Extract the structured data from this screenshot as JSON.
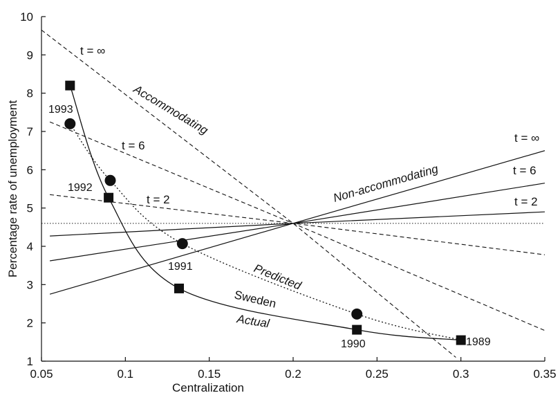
{
  "chart_data": {
    "type": "line",
    "xlabel": "Centralization",
    "ylabel": "Percentage rate of unemployment",
    "xlim": [
      0.05,
      0.35
    ],
    "ylim": [
      1,
      10
    ],
    "x_ticks": [
      "0.05",
      "0.1",
      "0.15",
      "0.2",
      "0.25",
      "0.3",
      "0.35"
    ],
    "y_ticks": [
      "1",
      "2",
      "3",
      "4",
      "5",
      "6",
      "7",
      "8",
      "9",
      "10"
    ],
    "grid": false,
    "reference_line": {
      "y": 4.6,
      "style": "dotted"
    },
    "series": [
      {
        "group": "Accommodating",
        "name": "t = ∞",
        "style": "dashed",
        "points": [
          [
            0.05,
            9.65
          ],
          [
            0.2,
            4.6
          ],
          [
            0.297,
            1.1
          ]
        ]
      },
      {
        "group": "Accommodating",
        "name": "t = 6",
        "style": "dashed",
        "points": [
          [
            0.055,
            7.25
          ],
          [
            0.2,
            4.6
          ],
          [
            0.35,
            1.8
          ]
        ]
      },
      {
        "group": "Accommodating",
        "name": "t = 2",
        "style": "dashed",
        "points": [
          [
            0.055,
            5.35
          ],
          [
            0.2,
            4.6
          ],
          [
            0.35,
            3.78
          ]
        ]
      },
      {
        "group": "Non-accommodating",
        "name": "t = ∞",
        "style": "solid",
        "points": [
          [
            0.055,
            2.75
          ],
          [
            0.2,
            4.6
          ],
          [
            0.35,
            6.5
          ]
        ]
      },
      {
        "group": "Non-accommodating",
        "name": "t = 6",
        "style": "solid",
        "points": [
          [
            0.055,
            3.62
          ],
          [
            0.2,
            4.6
          ],
          [
            0.35,
            5.65
          ]
        ]
      },
      {
        "group": "Non-accommodating",
        "name": "t = 2",
        "style": "solid",
        "points": [
          [
            0.055,
            4.27
          ],
          [
            0.2,
            4.6
          ],
          [
            0.35,
            4.9
          ]
        ]
      },
      {
        "group": "Sweden",
        "name": "Actual",
        "style": "solid",
        "marker": "square",
        "points": [
          [
            0.067,
            8.2
          ],
          [
            0.09,
            5.27
          ],
          [
            0.132,
            2.9
          ],
          [
            0.238,
            1.82
          ],
          [
            0.3,
            1.55
          ]
        ]
      },
      {
        "group": "Sweden",
        "name": "Predicted",
        "style": "dotted",
        "marker": "circle",
        "points": [
          [
            0.067,
            7.2
          ],
          [
            0.091,
            5.72
          ],
          [
            0.134,
            4.07
          ],
          [
            0.238,
            2.23
          ],
          [
            0.3,
            1.55
          ]
        ]
      }
    ],
    "point_labels": [
      {
        "text": "1993",
        "x": 0.067,
        "y": 7.2
      },
      {
        "text": "1992",
        "x": 0.091,
        "y": 5.72
      },
      {
        "text": "1991",
        "x": 0.134,
        "y": 4.07
      },
      {
        "text": "1990",
        "x": 0.238,
        "y": 1.82
      },
      {
        "text": "1989",
        "x": 0.3,
        "y": 1.55
      }
    ],
    "annotations": [
      "Accommodating",
      "Non-accommodating",
      "Predicted",
      "Sweden",
      "Actual",
      "t = ∞",
      "t = 6",
      "t = 2",
      "t = ∞",
      "t = 6",
      "t = 2"
    ]
  }
}
